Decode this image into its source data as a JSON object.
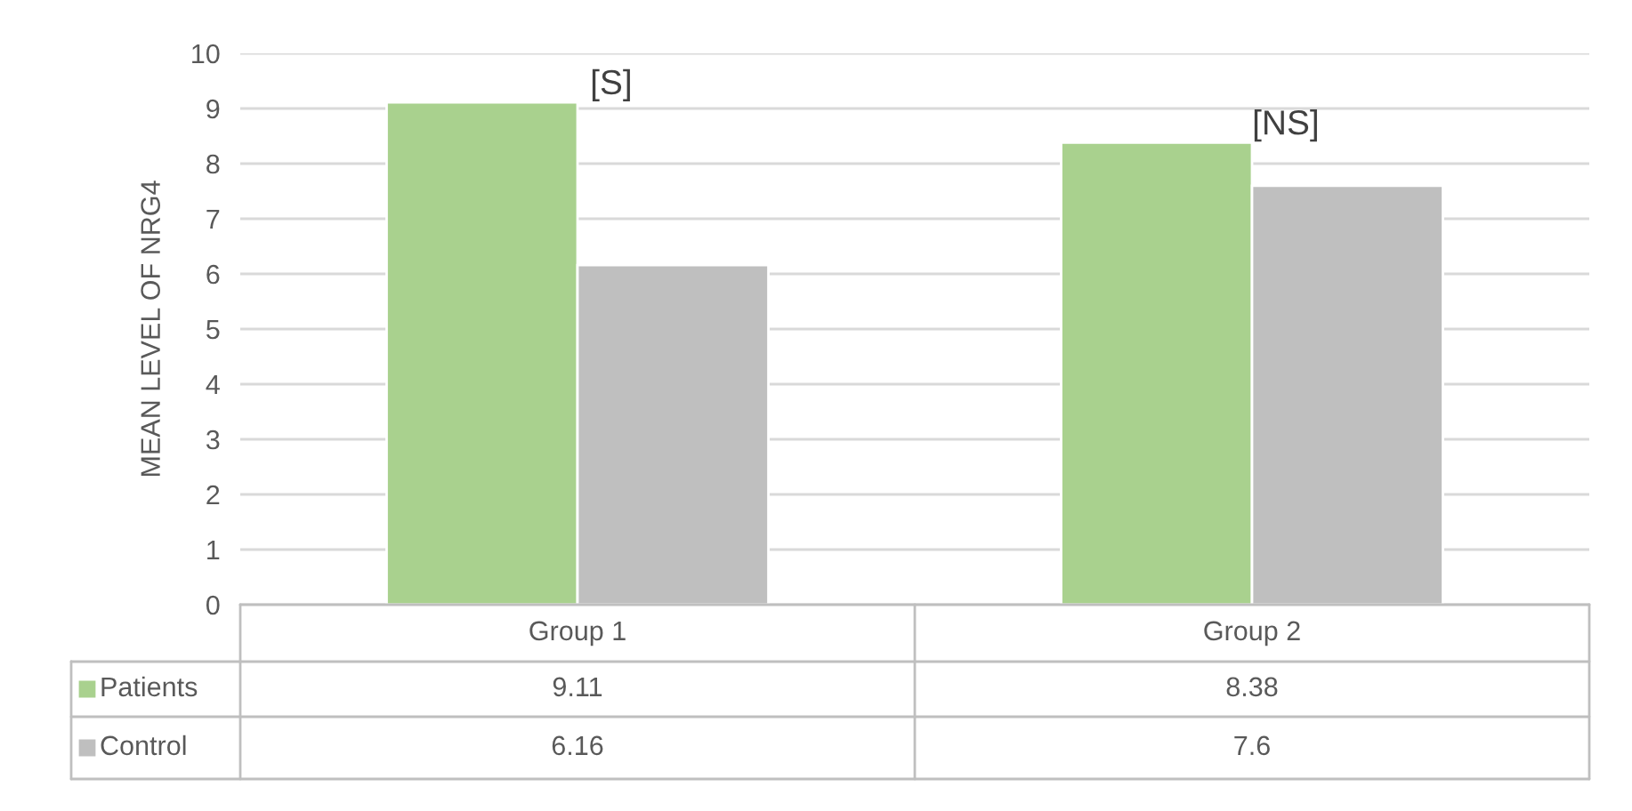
{
  "chart_data": {
    "type": "bar",
    "ylabel": "MEAN LEVEL OF NRG4",
    "categories": [
      "Group 1",
      "Group 2"
    ],
    "series": [
      {
        "name": "Patients",
        "color": "#a9d18e",
        "values": [
          9.11,
          8.38
        ]
      },
      {
        "name": "Control",
        "color": "#bfbfbf",
        "values": [
          6.16,
          7.6
        ]
      }
    ],
    "ylim": [
      0,
      10
    ],
    "yticks": [
      0,
      1,
      2,
      3,
      4,
      5,
      6,
      7,
      8,
      9,
      10
    ],
    "grid": "y",
    "legend": "bottom",
    "data_labels": true,
    "annotations": [
      "[S]",
      "[NS]"
    ]
  }
}
